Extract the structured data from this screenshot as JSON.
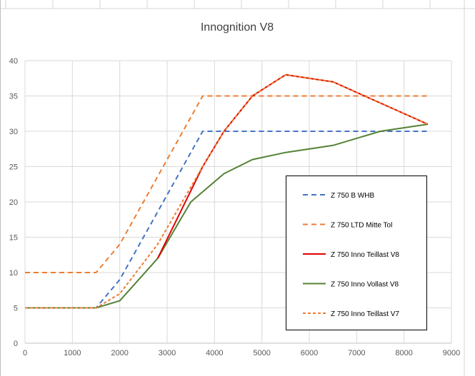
{
  "chart_data": {
    "type": "line",
    "title": "Innognition V8",
    "xlabel": "",
    "ylabel": "",
    "xlim": [
      0,
      9000
    ],
    "ylim": [
      0,
      40
    ],
    "xticks": [
      0,
      1000,
      2000,
      3000,
      4000,
      5000,
      6000,
      7000,
      8000,
      9000
    ],
    "yticks": [
      0,
      5,
      10,
      15,
      20,
      25,
      30,
      35,
      40
    ],
    "grid": true,
    "legend": "right",
    "series": [
      {
        "name": "Z 750 B WHB",
        "color": "#4472c4",
        "dash": "dashed",
        "points": [
          [
            0,
            5
          ],
          [
            1500,
            5
          ],
          [
            2000,
            9
          ],
          [
            3750,
            30
          ],
          [
            8500,
            30
          ]
        ]
      },
      {
        "name": "Z 750 LTD Mitte Tol",
        "color": "#ed7d31",
        "dash": "dashed",
        "points": [
          [
            0,
            10
          ],
          [
            1500,
            10
          ],
          [
            2000,
            14
          ],
          [
            3750,
            35
          ],
          [
            8500,
            35
          ]
        ]
      },
      {
        "name": "Z 750 Inno Teillast V8",
        "color": "#e00000",
        "dash": "solid",
        "points": [
          [
            2800,
            12
          ],
          [
            3750,
            25
          ],
          [
            4200,
            30
          ],
          [
            4800,
            35
          ],
          [
            5500,
            38
          ],
          [
            6500,
            37
          ],
          [
            8500,
            31
          ]
        ]
      },
      {
        "name": "Z 750 Inno Vollast V8",
        "color": "#548235",
        "dash": "solid",
        "points": [
          [
            0,
            5
          ],
          [
            1500,
            5
          ],
          [
            2000,
            6
          ],
          [
            2800,
            12
          ],
          [
            3500,
            20
          ],
          [
            4200,
            24
          ],
          [
            4800,
            26
          ],
          [
            5500,
            27
          ],
          [
            6500,
            28
          ],
          [
            7500,
            30
          ],
          [
            8500,
            31
          ]
        ]
      },
      {
        "name": "Z 750 Inno Teillast V7",
        "color": "#ed7d31",
        "dash": "dotted",
        "points": [
          [
            0,
            5
          ],
          [
            1500,
            5
          ],
          [
            2000,
            7
          ],
          [
            2800,
            14
          ],
          [
            3750,
            25
          ],
          [
            4200,
            30
          ],
          [
            4800,
            35
          ],
          [
            5500,
            38
          ],
          [
            6500,
            37
          ],
          [
            8500,
            31
          ]
        ]
      }
    ]
  }
}
